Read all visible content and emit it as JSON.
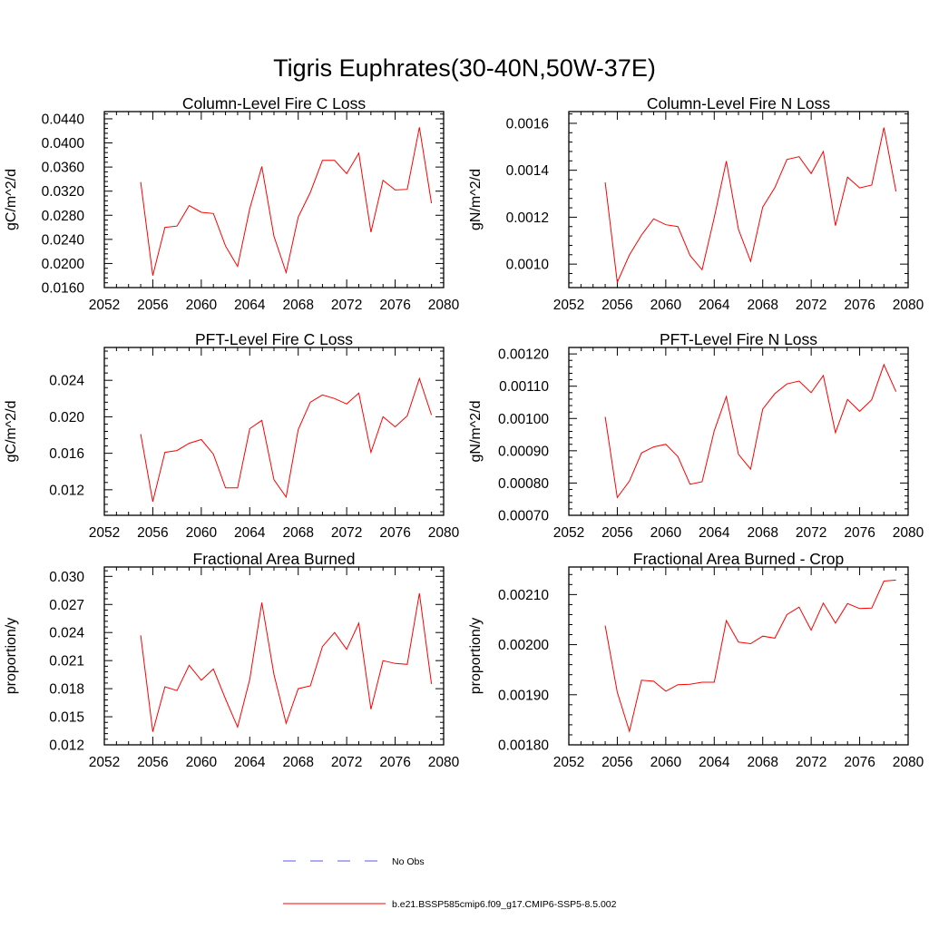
{
  "figure": {
    "title": "Tigris Euphrates(30-40N,50W-37E)"
  },
  "legend": [
    {
      "label": "No Obs",
      "color": "#5a5ae6",
      "dash": true
    },
    {
      "label": "b.e21.BSSP585cmip6.f09_g17.CMIP6-SSP5-8.5.002",
      "color": "#ff0000",
      "dash": false
    }
  ],
  "chart_data": [
    {
      "type": "line",
      "title": "Column-Level Fire C Loss",
      "ylabel": "gC/m^2/d",
      "xlim": [
        2052,
        2080
      ],
      "ylim": [
        0.016,
        0.0452
      ],
      "xticks": [
        2052,
        2056,
        2060,
        2064,
        2068,
        2072,
        2076,
        2080
      ],
      "yticks": [
        0.016,
        0.02,
        0.024,
        0.028,
        0.032,
        0.036,
        0.04,
        0.044
      ],
      "ytick_labels": [
        "0.0160",
        "0.0200",
        "0.0240",
        "0.0280",
        "0.0320",
        "0.0360",
        "0.0400",
        "0.0440"
      ],
      "x": [
        2055,
        2056,
        2057,
        2058,
        2059,
        2060,
        2061,
        2062,
        2063,
        2064,
        2065,
        2066,
        2067,
        2068,
        2069,
        2070,
        2071,
        2072,
        2073,
        2074,
        2075,
        2076,
        2077,
        2078,
        2079
      ],
      "series": [
        {
          "color": "#ff0000",
          "values": [
            0.0335,
            0.018,
            0.026,
            0.0262,
            0.0296,
            0.0285,
            0.0283,
            0.0229,
            0.0195,
            0.0291,
            0.0361,
            0.0245,
            0.0185,
            0.0277,
            0.0318,
            0.0371,
            0.0371,
            0.0349,
            0.0383,
            0.0252,
            0.0338,
            0.0322,
            0.0323,
            0.0426,
            0.03
          ]
        }
      ]
    },
    {
      "type": "line",
      "title": "Column-Level Fire N Loss",
      "ylabel": "gN/m^2/d",
      "xlim": [
        2052,
        2080
      ],
      "ylim": [
        0.0009,
        0.00165
      ],
      "xticks": [
        2052,
        2056,
        2060,
        2064,
        2068,
        2072,
        2076,
        2080
      ],
      "yticks": [
        0.001,
        0.0012,
        0.0014,
        0.0016
      ],
      "ytick_labels": [
        "0.0010",
        "0.0012",
        "0.0014",
        "0.0016"
      ],
      "x": [
        2055,
        2056,
        2057,
        2058,
        2059,
        2060,
        2061,
        2062,
        2063,
        2064,
        2065,
        2066,
        2067,
        2068,
        2069,
        2070,
        2071,
        2072,
        2073,
        2074,
        2075,
        2076,
        2077,
        2078,
        2079
      ],
      "series": [
        {
          "color": "#ff0000",
          "values": [
            0.001348,
            0.000923,
            0.001039,
            0.001124,
            0.001193,
            0.001168,
            0.00116,
            0.001037,
            0.000976,
            0.001199,
            0.001439,
            0.001148,
            0.001012,
            0.001243,
            0.001326,
            0.001446,
            0.001458,
            0.001386,
            0.00148,
            0.001164,
            0.001371,
            0.001325,
            0.001337,
            0.001582,
            0.00131
          ]
        }
      ]
    },
    {
      "type": "line",
      "title": "PFT-Level Fire C Loss",
      "ylabel": "gC/m^2/d",
      "xlim": [
        2052,
        2080
      ],
      "ylim": [
        0.0092,
        0.0276
      ],
      "xticks": [
        2052,
        2056,
        2060,
        2064,
        2068,
        2072,
        2076,
        2080
      ],
      "yticks": [
        0.012,
        0.016,
        0.02,
        0.024
      ],
      "ytick_labels": [
        "0.012",
        "0.016",
        "0.020",
        "0.024"
      ],
      "x": [
        2055,
        2056,
        2057,
        2058,
        2059,
        2060,
        2061,
        2062,
        2063,
        2064,
        2065,
        2066,
        2067,
        2068,
        2069,
        2070,
        2071,
        2072,
        2073,
        2074,
        2075,
        2076,
        2077,
        2078,
        2079
      ],
      "series": [
        {
          "color": "#ff0000",
          "values": [
            0.0181,
            0.0107,
            0.0161,
            0.0163,
            0.0171,
            0.0175,
            0.0159,
            0.0122,
            0.0122,
            0.0187,
            0.0196,
            0.0131,
            0.0112,
            0.0186,
            0.0216,
            0.0224,
            0.022,
            0.0214,
            0.0226,
            0.0161,
            0.02,
            0.0189,
            0.0201,
            0.0242,
            0.0202
          ]
        }
      ]
    },
    {
      "type": "line",
      "title": "PFT-Level Fire N Loss",
      "ylabel": "gN/m^2/d",
      "xlim": [
        2052,
        2080
      ],
      "ylim": [
        0.0007,
        0.00122
      ],
      "xticks": [
        2052,
        2056,
        2060,
        2064,
        2068,
        2072,
        2076,
        2080
      ],
      "yticks": [
        0.0007,
        0.0008,
        0.0009,
        0.001,
        0.0011,
        0.0012
      ],
      "ytick_labels": [
        "0.00070",
        "0.00080",
        "0.00090",
        "0.00100",
        "0.00110",
        "0.00120"
      ],
      "x": [
        2055,
        2056,
        2057,
        2058,
        2059,
        2060,
        2061,
        2062,
        2063,
        2064,
        2065,
        2066,
        2067,
        2068,
        2069,
        2070,
        2071,
        2072,
        2073,
        2074,
        2075,
        2076,
        2077,
        2078,
        2079
      ],
      "series": [
        {
          "color": "#ff0000",
          "values": [
            0.001005,
            0.000755,
            0.000806,
            0.000893,
            0.000912,
            0.00092,
            0.000882,
            0.000796,
            0.000804,
            0.000962,
            0.001068,
            0.000889,
            0.000843,
            0.001029,
            0.001077,
            0.001107,
            0.001116,
            0.00108,
            0.001133,
            0.000956,
            0.001059,
            0.001022,
            0.001058,
            0.001167,
            0.001083
          ]
        }
      ]
    },
    {
      "type": "line",
      "title": "Fractional Area Burned",
      "ylabel": "proportion/y",
      "xlim": [
        2052,
        2080
      ],
      "ylim": [
        0.012,
        0.031
      ],
      "xticks": [
        2052,
        2056,
        2060,
        2064,
        2068,
        2072,
        2076,
        2080
      ],
      "yticks": [
        0.012,
        0.015,
        0.018,
        0.021,
        0.024,
        0.027,
        0.03
      ],
      "ytick_labels": [
        "0.012",
        "0.015",
        "0.018",
        "0.021",
        "0.024",
        "0.027",
        "0.030"
      ],
      "x": [
        2055,
        2056,
        2057,
        2058,
        2059,
        2060,
        2061,
        2062,
        2063,
        2064,
        2065,
        2066,
        2067,
        2068,
        2069,
        2070,
        2071,
        2072,
        2073,
        2074,
        2075,
        2076,
        2077,
        2078,
        2079
      ],
      "series": [
        {
          "color": "#ff0000",
          "values": [
            0.0237,
            0.0134,
            0.0182,
            0.0178,
            0.0205,
            0.0189,
            0.0201,
            0.0169,
            0.0139,
            0.019,
            0.0272,
            0.0195,
            0.0143,
            0.018,
            0.0183,
            0.0225,
            0.024,
            0.0222,
            0.025,
            0.0158,
            0.021,
            0.0207,
            0.0206,
            0.0282,
            0.0185
          ]
        }
      ]
    },
    {
      "type": "line",
      "title": "Fractional Area Burned - Crop",
      "ylabel": "proportion/y",
      "xlim": [
        2052,
        2080
      ],
      "ylim": [
        0.0018,
        0.002155
      ],
      "xticks": [
        2052,
        2056,
        2060,
        2064,
        2068,
        2072,
        2076,
        2080
      ],
      "yticks": [
        0.0018,
        0.0019,
        0.002,
        0.0021
      ],
      "ytick_labels": [
        "0.00180",
        "0.00190",
        "0.00200",
        "0.00210"
      ],
      "x": [
        2055,
        2056,
        2057,
        2058,
        2059,
        2060,
        2061,
        2062,
        2063,
        2064,
        2065,
        2066,
        2067,
        2068,
        2069,
        2070,
        2071,
        2072,
        2073,
        2074,
        2075,
        2076,
        2077,
        2078,
        2079
      ],
      "series": [
        {
          "color": "#ff0000",
          "values": [
            0.002038,
            0.001905,
            0.001827,
            0.001929,
            0.001927,
            0.001907,
            0.00192,
            0.001921,
            0.001925,
            0.001925,
            0.002048,
            0.002005,
            0.002002,
            0.002017,
            0.002013,
            0.00206,
            0.002075,
            0.002029,
            0.002083,
            0.002043,
            0.002082,
            0.002072,
            0.002073,
            0.002127,
            0.002129
          ]
        }
      ]
    }
  ]
}
